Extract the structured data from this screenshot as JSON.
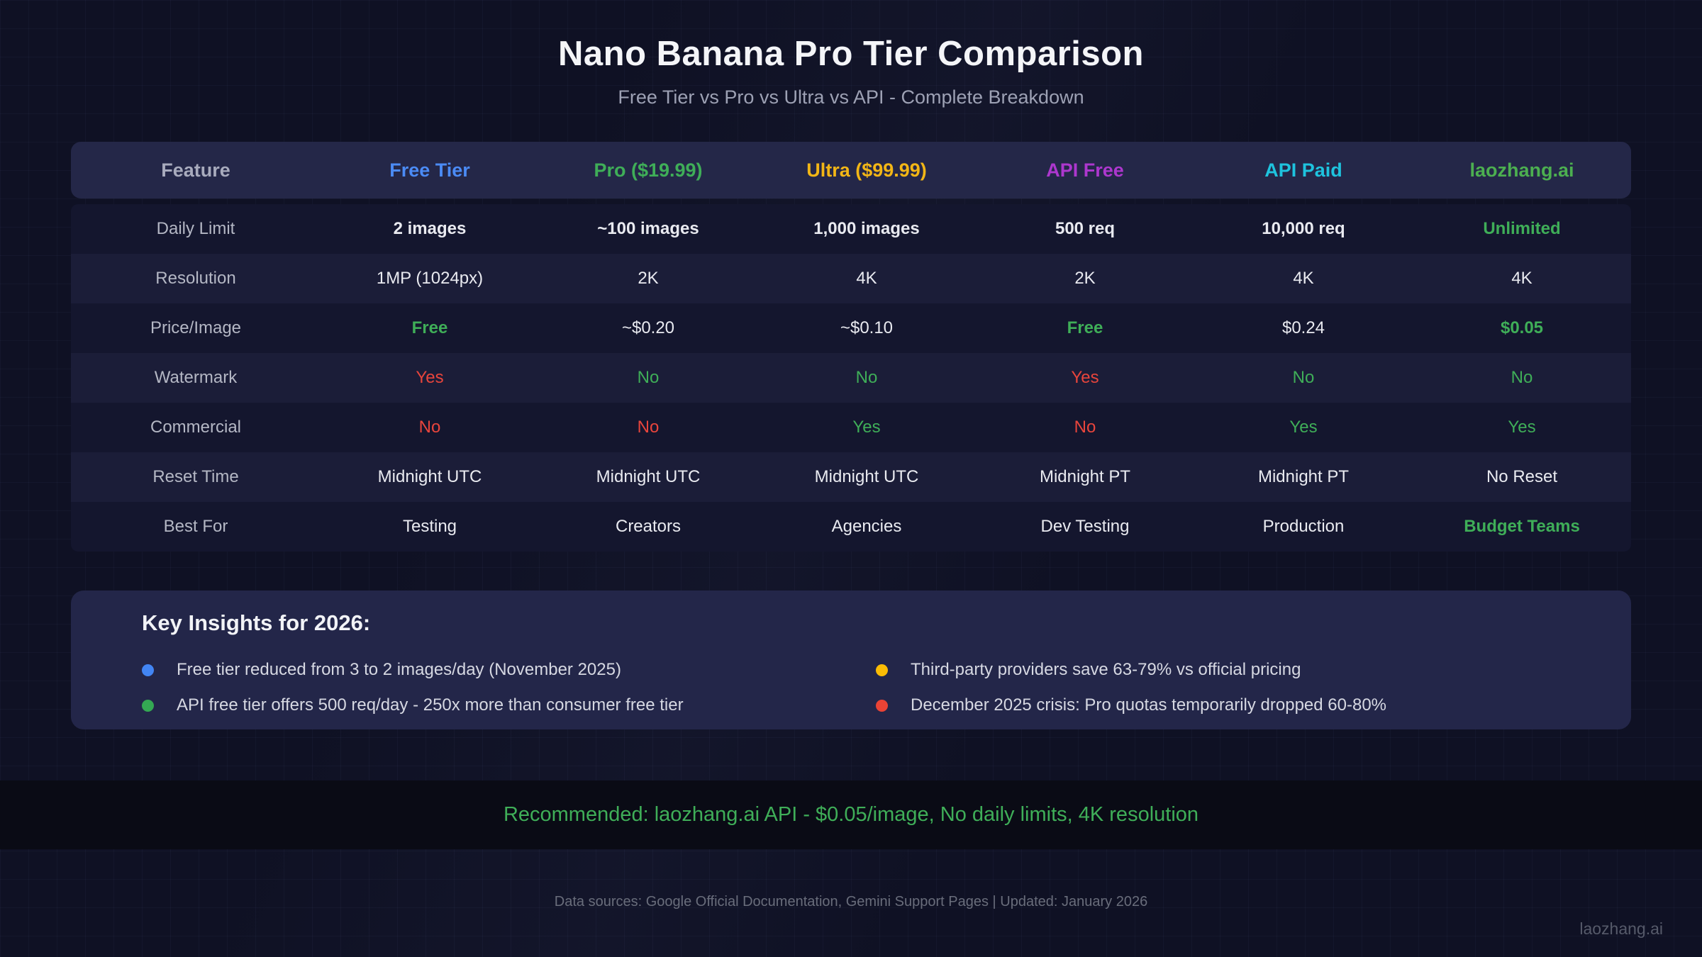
{
  "colors": {
    "page-bg": "#0f1124",
    "green": "#3fae58",
    "red": "#e8453c",
    "blue": "#4b8bf5",
    "yellow": "#f2b616",
    "magenta": "#ad37ce",
    "cyan": "#1ec3de",
    "brand-green": "#4caf50"
  },
  "header": {
    "title": "Nano Banana Pro Tier Comparison",
    "subtitle": "Free Tier vs Pro vs Ultra vs API - Complete Breakdown"
  },
  "table": {
    "columns": [
      {
        "label": "Feature",
        "color": "#a8abbd"
      },
      {
        "label": "Free Tier",
        "color": "#4b8bf5"
      },
      {
        "label": "Pro ($19.99)",
        "color": "#3fae58"
      },
      {
        "label": "Ultra ($99.99)",
        "color": "#f2b616"
      },
      {
        "label": "API Free",
        "color": "#ad37ce"
      },
      {
        "label": "API Paid",
        "color": "#1ec3de"
      },
      {
        "label": "laozhang.ai",
        "color": "#4caf50"
      }
    ],
    "rows": [
      {
        "feature": "Daily Limit",
        "cells": [
          {
            "text": "2 images",
            "color": "white",
            "bold": true
          },
          {
            "text": "~100 images",
            "color": "white",
            "bold": true
          },
          {
            "text": "1,000 images",
            "color": "white",
            "bold": true
          },
          {
            "text": "500 req",
            "color": "white",
            "bold": true
          },
          {
            "text": "10,000 req",
            "color": "white",
            "bold": true
          },
          {
            "text": "Unlimited",
            "color": "green",
            "bold": true
          }
        ]
      },
      {
        "feature": "Resolution",
        "cells": [
          {
            "text": "1MP (1024px)",
            "color": "white",
            "bold": false
          },
          {
            "text": "2K",
            "color": "white",
            "bold": false
          },
          {
            "text": "4K",
            "color": "white",
            "bold": false
          },
          {
            "text": "2K",
            "color": "white",
            "bold": false
          },
          {
            "text": "4K",
            "color": "white",
            "bold": false
          },
          {
            "text": "4K",
            "color": "white",
            "bold": false
          }
        ]
      },
      {
        "feature": "Price/Image",
        "cells": [
          {
            "text": "Free",
            "color": "green",
            "bold": true
          },
          {
            "text": "~$0.20",
            "color": "white",
            "bold": false
          },
          {
            "text": "~$0.10",
            "color": "white",
            "bold": false
          },
          {
            "text": "Free",
            "color": "green",
            "bold": true
          },
          {
            "text": "$0.24",
            "color": "white",
            "bold": false
          },
          {
            "text": "$0.05",
            "color": "green",
            "bold": true
          }
        ]
      },
      {
        "feature": "Watermark",
        "cells": [
          {
            "text": "Yes",
            "color": "red",
            "bold": false
          },
          {
            "text": "No",
            "color": "green",
            "bold": false
          },
          {
            "text": "No",
            "color": "green",
            "bold": false
          },
          {
            "text": "Yes",
            "color": "red",
            "bold": false
          },
          {
            "text": "No",
            "color": "green",
            "bold": false
          },
          {
            "text": "No",
            "color": "green",
            "bold": false
          }
        ]
      },
      {
        "feature": "Commercial",
        "cells": [
          {
            "text": "No",
            "color": "red",
            "bold": false
          },
          {
            "text": "No",
            "color": "red",
            "bold": false
          },
          {
            "text": "Yes",
            "color": "green",
            "bold": false
          },
          {
            "text": "No",
            "color": "red",
            "bold": false
          },
          {
            "text": "Yes",
            "color": "green",
            "bold": false
          },
          {
            "text": "Yes",
            "color": "green",
            "bold": false
          }
        ]
      },
      {
        "feature": "Reset Time",
        "cells": [
          {
            "text": "Midnight UTC",
            "color": "white",
            "bold": false
          },
          {
            "text": "Midnight UTC",
            "color": "white",
            "bold": false
          },
          {
            "text": "Midnight UTC",
            "color": "white",
            "bold": false
          },
          {
            "text": "Midnight PT",
            "color": "white",
            "bold": false
          },
          {
            "text": "Midnight PT",
            "color": "white",
            "bold": false
          },
          {
            "text": "No Reset",
            "color": "white",
            "bold": false
          }
        ]
      },
      {
        "feature": "Best For",
        "cells": [
          {
            "text": "Testing",
            "color": "white",
            "bold": false
          },
          {
            "text": "Creators",
            "color": "white",
            "bold": false
          },
          {
            "text": "Agencies",
            "color": "white",
            "bold": false
          },
          {
            "text": "Dev Testing",
            "color": "white",
            "bold": false
          },
          {
            "text": "Production",
            "color": "white",
            "bold": false
          },
          {
            "text": "Budget Teams",
            "color": "green",
            "bold": true
          }
        ]
      }
    ]
  },
  "insights": {
    "heading": "Key Insights for 2026:",
    "columns": [
      {
        "items": [
          {
            "dot_name": "blue-bullet-icon",
            "dot_color": "#4285f4",
            "text": "Free tier reduced from 3 to 2 images/day (November 2025)"
          },
          {
            "dot_name": "green-bullet-icon",
            "dot_color": "#34a853",
            "text": "API free tier offers 500 req/day - 250x more than consumer free tier"
          }
        ]
      },
      {
        "items": [
          {
            "dot_name": "yellow-bullet-icon",
            "dot_color": "#fbbc05",
            "text": "Third-party providers save 63-79% vs official pricing"
          },
          {
            "dot_name": "red-bullet-icon",
            "dot_color": "#ea4335",
            "text": "December 2025 crisis: Pro quotas temporarily dropped 60-80%"
          }
        ]
      }
    ]
  },
  "recommendation": {
    "text": "Recommended: laozhang.ai API - $0.05/image, No daily limits, 4K resolution"
  },
  "footer": {
    "sources": "Data sources: Google Official Documentation, Gemini Support Pages | Updated: January 2026",
    "watermark": "laozhang.ai"
  }
}
